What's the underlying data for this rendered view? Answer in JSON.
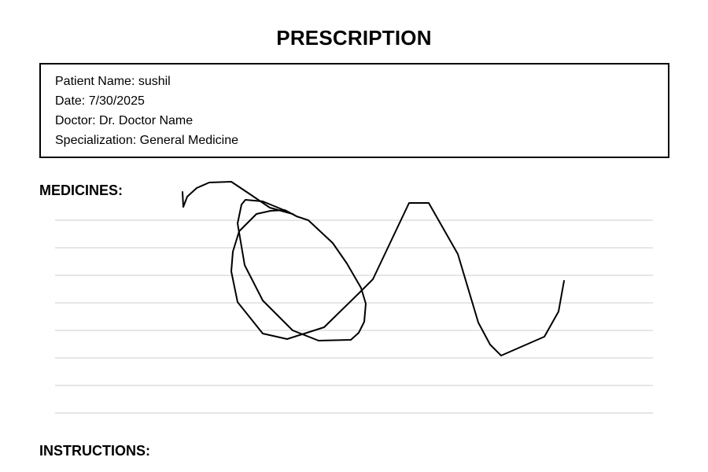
{
  "document": {
    "title": "PRESCRIPTION"
  },
  "patient_info": {
    "patient_name": "Patient Name: sushil",
    "date": "Date: 7/30/2025",
    "doctor": "Doctor: Dr. Doctor Name",
    "specialization": "Specialization: General Medicine"
  },
  "sections": {
    "medicines_heading": "MEDICINES:",
    "instructions_heading": "INSTRUCTIONS:"
  },
  "signature": {
    "kind": "handwritten-scribble",
    "stroke_color": "#000000"
  },
  "colors": {
    "rule_line": "#e6e6e6",
    "border": "#000000"
  }
}
